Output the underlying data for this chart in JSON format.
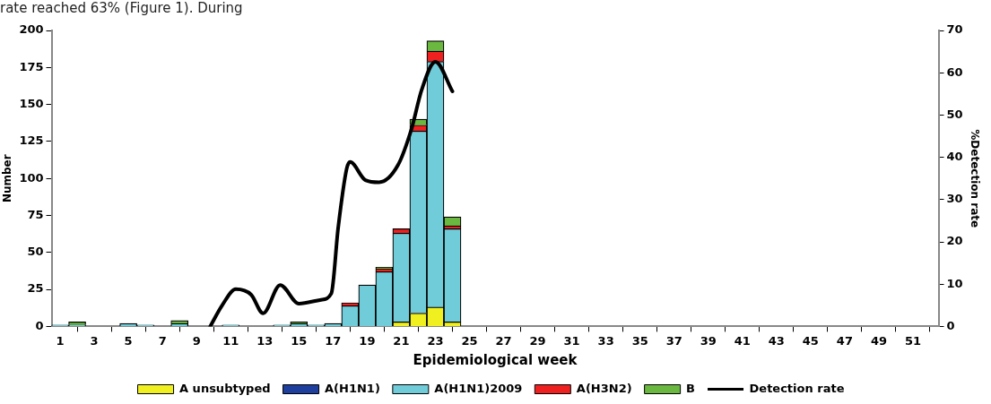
{
  "chart_data": {
    "type": "bar",
    "stacked": true,
    "annotations": [
      "rate reached 63% (Figure 1). During"
    ],
    "xlabel": "Epidemiological week",
    "ylabel": "Number",
    "y2label": "%Detection rate",
    "x": [
      1,
      2,
      3,
      4,
      5,
      6,
      7,
      8,
      9,
      10,
      11,
      12,
      13,
      14,
      15,
      16,
      17,
      18,
      19,
      20,
      21,
      22,
      23,
      24
    ],
    "xlim": [
      0.5,
      52.5
    ],
    "xticks": [
      1,
      3,
      5,
      7,
      9,
      11,
      13,
      15,
      17,
      19,
      21,
      23,
      25,
      27,
      29,
      31,
      33,
      35,
      37,
      39,
      41,
      43,
      45,
      47,
      49,
      51
    ],
    "ylim": [
      0,
      200
    ],
    "yticks": [
      0,
      25,
      50,
      75,
      100,
      125,
      150,
      175,
      200
    ],
    "y2lim": [
      0,
      70
    ],
    "y2ticks": [
      0,
      10,
      20,
      30,
      40,
      50,
      60,
      70
    ],
    "legend": "bottom",
    "marker": "none",
    "series": [
      {
        "name": "A unsubtyped",
        "color": "#f0f020",
        "values": [
          null,
          null,
          null,
          null,
          null,
          null,
          null,
          null,
          null,
          null,
          null,
          null,
          null,
          null,
          null,
          null,
          null,
          null,
          null,
          null,
          3,
          9,
          13,
          3
        ]
      },
      {
        "name": "A(H1N1)",
        "color": "#1f3f9f",
        "values": [
          null,
          null,
          null,
          null,
          null,
          null,
          null,
          null,
          null,
          null,
          null,
          null,
          null,
          null,
          null,
          null,
          null,
          null,
          null,
          null,
          null,
          null,
          null,
          null
        ]
      },
      {
        "name": "A(H1N1)2009",
        "color": "#70ccd8",
        "values": [
          1,
          1,
          null,
          null,
          2,
          1,
          null,
          2,
          null,
          null,
          1,
          null,
          null,
          1,
          2,
          1,
          2,
          14,
          28,
          37,
          60,
          123,
          166,
          63
        ]
      },
      {
        "name": "A(H3N2)",
        "color": "#ee2020",
        "values": [
          null,
          null,
          null,
          null,
          null,
          null,
          null,
          null,
          null,
          null,
          null,
          null,
          null,
          null,
          null,
          null,
          null,
          2,
          null,
          2,
          3,
          4,
          7,
          2
        ]
      },
      {
        "name": "B",
        "color": "#6ab840",
        "values": [
          null,
          2,
          null,
          null,
          null,
          null,
          null,
          2,
          null,
          null,
          null,
          null,
          null,
          null,
          1,
          null,
          null,
          null,
          null,
          1,
          null,
          4,
          7,
          6
        ]
      },
      {
        "name": "Detection rate",
        "type": "line",
        "axis": "y2",
        "color": "#000000",
        "x": [
          9.8,
          10.5,
          11.3,
          12.2,
          12.9,
          13.9,
          15.0,
          16.3,
          16.9,
          17.3,
          17.8,
          18.0,
          18.9,
          19.7,
          20.8,
          21.6,
          22.2,
          23.0,
          24.0
        ],
        "values": [
          0,
          5,
          8.8,
          7.5,
          3.1,
          9.8,
          5.4,
          6.3,
          7.8,
          23.3,
          37.3,
          38.9,
          34.6,
          34.1,
          38.1,
          46.7,
          56,
          62.6,
          55.6
        ]
      }
    ]
  }
}
